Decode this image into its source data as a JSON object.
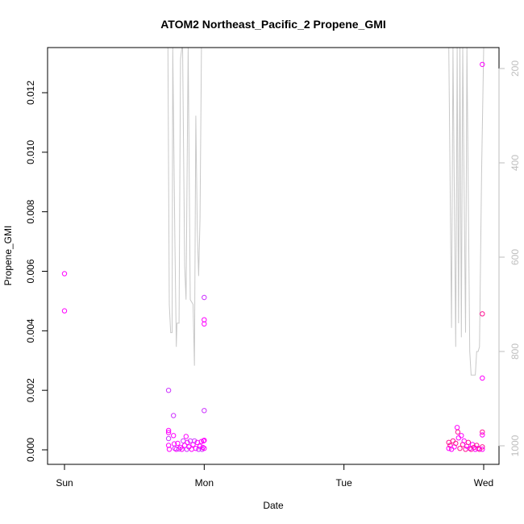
{
  "chart_data": {
    "type": "scatter",
    "title": "ATOM2 Northeast_Pacific_2 Propene_GMI",
    "xlabel": "Date",
    "ylabel": "Propene_GMI",
    "x_ticks": [
      "Sun",
      "Mon",
      "Tue",
      "Wed"
    ],
    "y_ticks": [
      "0.000",
      "0.002",
      "0.004",
      "0.006",
      "0.008",
      "0.010",
      "0.012"
    ],
    "y2_ticks": [
      "200",
      "400",
      "600",
      "800",
      "1000"
    ],
    "xlim": [
      0,
      3
    ],
    "ylim": [
      0,
      0.0135
    ],
    "y2lim": [
      1030,
      140
    ],
    "grid": false,
    "colors": {
      "points_primary": "#ff00ff",
      "points_secondary": "#ff1493",
      "points_tertiary": "#cc33ff",
      "pressure_line": "#c8c8c8",
      "right_axis": "#bebebe"
    },
    "series": [
      {
        "points": [
          [
            0.0,
            0.00592
          ],
          [
            0.0,
            0.00467
          ],
          [
            0.745,
            0.002
          ],
          [
            0.745,
            0.00065
          ],
          [
            0.745,
            0.00058
          ],
          [
            0.745,
            0.00038
          ],
          [
            0.745,
            0.00015
          ],
          [
            0.75,
            2e-05
          ],
          [
            0.78,
            0.00115
          ],
          [
            0.78,
            0.00048
          ],
          [
            0.785,
            0.0002
          ],
          [
            0.79,
            5e-05
          ],
          [
            0.8,
            2e-05
          ],
          [
            0.81,
            0.00022
          ],
          [
            0.82,
            3e-05
          ],
          [
            0.83,
            8e-05
          ],
          [
            0.84,
            2e-05
          ],
          [
            0.85,
            0.0003
          ],
          [
            0.86,
            0.00015
          ],
          [
            0.87,
            0.00045
          ],
          [
            0.875,
            2e-05
          ],
          [
            0.88,
            0.00025
          ],
          [
            0.89,
            0.0001
          ],
          [
            0.9,
            0.0003
          ],
          [
            0.91,
            2e-05
          ],
          [
            0.92,
            0.00018
          ],
          [
            0.93,
            0.0003
          ],
          [
            0.94,
            5e-05
          ],
          [
            0.95,
            0.00025
          ],
          [
            0.96,
            2e-05
          ],
          [
            0.97,
            0.00012
          ],
          [
            0.98,
            0.00028
          ],
          [
            0.985,
            2e-05
          ],
          [
            0.99,
            8e-05
          ],
          [
            0.995,
            0.0003
          ],
          [
            1.0,
            0.00512
          ],
          [
            1.0,
            0.00437
          ],
          [
            1.0,
            0.00423
          ],
          [
            1.0,
            0.00132
          ],
          [
            1.0,
            0.00032
          ],
          [
            1.0,
            5e-05
          ],
          [
            2.75,
            0.00025
          ],
          [
            2.75,
            5e-05
          ],
          [
            2.76,
            0.00015
          ],
          [
            2.77,
            2e-05
          ],
          [
            2.78,
            0.0003
          ],
          [
            2.79,
            0.0001
          ],
          [
            2.8,
            0.00022
          ],
          [
            2.81,
            0.00075
          ],
          [
            2.815,
            0.0006
          ],
          [
            2.82,
            0.0004
          ],
          [
            2.83,
            5e-05
          ],
          [
            2.84,
            0.00048
          ],
          [
            2.85,
            0.00018
          ],
          [
            2.86,
            0.0003
          ],
          [
            2.87,
            2e-05
          ],
          [
            2.88,
            0.00012
          ],
          [
            2.89,
            0.00025
          ],
          [
            2.9,
            5e-05
          ],
          [
            2.91,
            2e-05
          ],
          [
            2.92,
            0.00018
          ],
          [
            2.93,
            8e-05
          ],
          [
            2.94,
            2e-05
          ],
          [
            2.95,
            0.00015
          ],
          [
            2.96,
            5e-05
          ],
          [
            2.97,
            2e-05
          ],
          [
            2.99,
            0.01295
          ],
          [
            2.99,
            0.00457
          ],
          [
            2.99,
            0.00241
          ],
          [
            2.99,
            0.0006
          ],
          [
            2.99,
            0.0005
          ],
          [
            2.99,
            0.0001
          ],
          [
            2.99,
            2e-05
          ]
        ]
      }
    ],
    "pressure_line": [
      [
        0.74,
        140
      ],
      [
        0.75,
        700
      ],
      [
        0.76,
        760
      ],
      [
        0.77,
        760
      ],
      [
        0.775,
        140
      ],
      [
        0.79,
        560
      ],
      [
        0.8,
        790
      ],
      [
        0.805,
        740
      ],
      [
        0.81,
        740
      ],
      [
        0.82,
        740
      ],
      [
        0.83,
        180
      ],
      [
        0.84,
        140
      ],
      [
        0.845,
        140
      ],
      [
        0.86,
        620
      ],
      [
        0.87,
        690
      ],
      [
        0.885,
        140
      ],
      [
        0.9,
        690
      ],
      [
        0.92,
        700
      ],
      [
        0.93,
        830
      ],
      [
        0.94,
        300
      ],
      [
        0.95,
        540
      ],
      [
        0.96,
        640
      ],
      [
        0.97,
        520
      ],
      [
        0.98,
        140
      ],
      [
        1.0,
        140
      ],
      [
        2.75,
        140
      ],
      [
        2.77,
        750
      ],
      [
        2.78,
        140
      ],
      [
        2.8,
        790
      ],
      [
        2.81,
        140
      ],
      [
        2.82,
        740
      ],
      [
        2.83,
        140
      ],
      [
        2.84,
        770
      ],
      [
        2.85,
        140
      ],
      [
        2.87,
        760
      ],
      [
        2.88,
        140
      ],
      [
        2.9,
        800
      ],
      [
        2.91,
        850
      ],
      [
        2.93,
        850
      ],
      [
        2.94,
        850
      ],
      [
        2.95,
        800
      ],
      [
        2.955,
        800
      ],
      [
        2.96,
        800
      ],
      [
        2.97,
        790
      ],
      [
        2.985,
        420
      ],
      [
        3.0,
        140
      ]
    ]
  }
}
